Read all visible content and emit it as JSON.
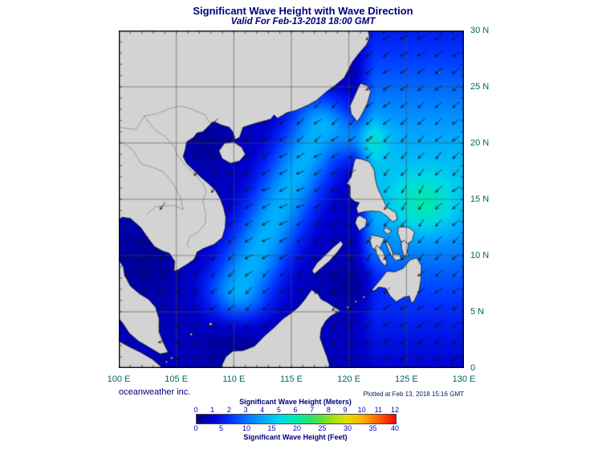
{
  "title": "Significant Wave Height with Wave Direction",
  "valid": "Valid For Feb-13-2018 18:00 GMT",
  "credit": "oceanweather inc.",
  "plotted_at": "Plotted at Feb 13, 2018 15:16 GMT",
  "axes": {
    "lon_ticks": [
      {
        "label": "100 E",
        "value": 100
      },
      {
        "label": "105 E",
        "value": 105
      },
      {
        "label": "110 E",
        "value": 110
      },
      {
        "label": "115 E",
        "value": 115
      },
      {
        "label": "120 E",
        "value": 120
      },
      {
        "label": "125 E",
        "value": 125
      },
      {
        "label": "130 E",
        "value": 130
      }
    ],
    "lat_ticks": [
      {
        "label": "30 N",
        "value": 30
      },
      {
        "label": "25 N",
        "value": 25
      },
      {
        "label": "20 N",
        "value": 20
      },
      {
        "label": "15 N",
        "value": 15
      },
      {
        "label": "10 N",
        "value": 10
      },
      {
        "label": "5 N",
        "value": 5
      },
      {
        "label": "0",
        "value": 0
      }
    ],
    "lon_range": [
      100,
      130
    ],
    "lat_range": [
      0,
      30
    ]
  },
  "colorbar": {
    "meters_label": "Significant Wave Height (Meters)",
    "feet_label": "Significant Wave Height (Feet)",
    "meters_ticks": [
      0,
      1,
      2,
      3,
      4,
      5,
      6,
      7,
      8,
      9,
      10,
      11,
      12
    ],
    "feet_ticks": [
      0,
      5,
      10,
      15,
      20,
      25,
      30,
      35,
      40
    ],
    "max_meters": 12,
    "stops": [
      "#000080",
      "#0000d0",
      "#0030ff",
      "#0070ff",
      "#00a8ff",
      "#00d8e8",
      "#00e8b0",
      "#30e060",
      "#90e020",
      "#e0e000",
      "#ffb000",
      "#ff6000",
      "#ff0000"
    ]
  },
  "map": {
    "land_color": "#d3d3d3",
    "coast_color": "#000000",
    "grid_color": "#4a4a4a",
    "arrow_color": "#101010"
  },
  "colors": {
    "title_text": "#00007d",
    "tick_labels": "#006666",
    "colorbar_numbers": "#0000cd",
    "plotted_text": "#002060"
  }
}
